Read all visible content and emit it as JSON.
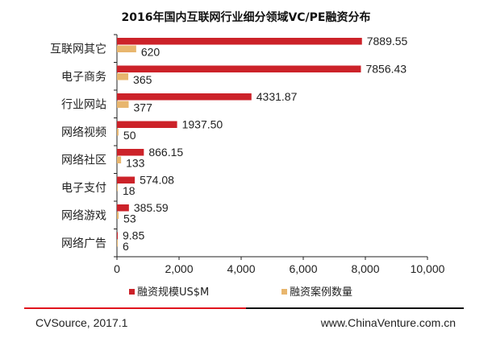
{
  "chart_data": {
    "type": "bar",
    "orientation": "horizontal",
    "title": "2016年国内互联网行业细分领域VC/PE融资分布",
    "categories": [
      "互联网其它",
      "电子商务",
      "行业网站",
      "网络视频",
      "网络社区",
      "电子支付",
      "网络游戏",
      "网络广告"
    ],
    "series": [
      {
        "name": "融资规模US$M",
        "color": "#cc2229",
        "values": [
          7889.55,
          7856.43,
          4331.87,
          1937.5,
          866.15,
          574.08,
          385.59,
          9.85
        ],
        "labels": [
          "7889.55",
          "7856.43",
          "4331.87",
          "1937.50",
          "866.15",
          "574.08",
          "385.59",
          "9.85"
        ]
      },
      {
        "name": "融资案例数量",
        "color": "#e8b66e",
        "values": [
          620,
          365,
          377,
          50,
          133,
          18,
          53,
          6
        ],
        "labels": [
          "620",
          "365",
          "377",
          "50",
          "133",
          "18",
          "53",
          "6"
        ]
      }
    ],
    "xlim": [
      0,
      10000
    ],
    "xticks": [
      "0",
      "2,000",
      "4,000",
      "6,000",
      "8,000",
      "10,000"
    ],
    "grid": false,
    "legend_position": "bottom"
  },
  "footer": {
    "source": "CVSource, 2017.1",
    "website": "www.ChinaVenture.com.cn",
    "line_colors": [
      "#e0141c",
      "#111111"
    ]
  }
}
